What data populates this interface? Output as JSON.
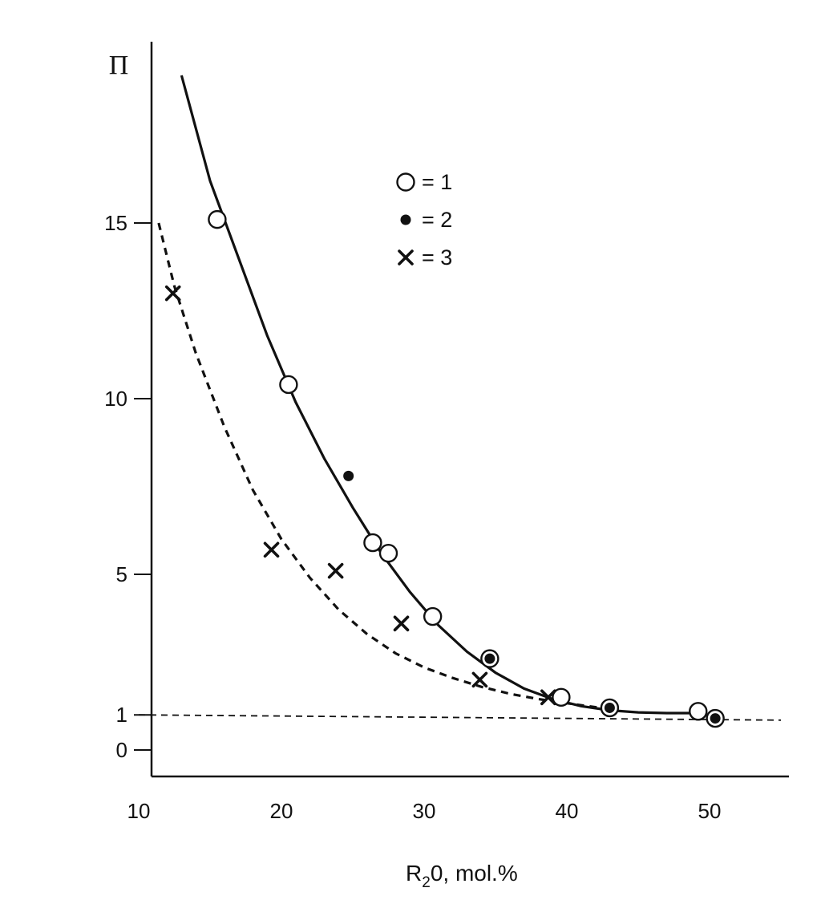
{
  "chart_data": {
    "type": "scatter",
    "title": "",
    "xlabel": {
      "main": "R",
      "sub": "2",
      "rest": "0, mol.%"
    },
    "ylabel": "Π",
    "xlim": [
      10,
      55
    ],
    "ylim": [
      -0.8,
      20
    ],
    "x_ticks": [
      10,
      20,
      30,
      40,
      50
    ],
    "y_ticks": [
      0,
      1,
      5,
      10,
      15
    ],
    "grid": false,
    "legend_position": "top-center",
    "legend": [
      {
        "marker": "open-circle",
        "text": "= 1"
      },
      {
        "marker": "filled-circle",
        "text": "= 2"
      },
      {
        "marker": "cross",
        "text": "= 3"
      }
    ],
    "series": [
      {
        "name": "1",
        "marker": "open-circle",
        "points": [
          [
            15.5,
            15.1
          ],
          [
            20.5,
            10.4
          ],
          [
            26.4,
            5.9
          ],
          [
            27.5,
            5.6
          ],
          [
            30.6,
            3.8
          ],
          [
            34.6,
            2.6
          ],
          [
            39.6,
            1.5
          ],
          [
            43.0,
            1.2
          ],
          [
            49.2,
            1.1
          ],
          [
            50.4,
            0.9
          ]
        ]
      },
      {
        "name": "2",
        "marker": "filled-circle",
        "points": [
          [
            24.7,
            7.8
          ],
          [
            34.6,
            2.6
          ],
          [
            43.0,
            1.2
          ],
          [
            50.4,
            0.9
          ]
        ]
      },
      {
        "name": "3",
        "marker": "cross",
        "points": [
          [
            12.4,
            13.0
          ],
          [
            19.3,
            5.7
          ],
          [
            23.8,
            5.1
          ],
          [
            28.4,
            3.6
          ],
          [
            33.9,
            2.0
          ],
          [
            38.7,
            1.5
          ]
        ]
      }
    ],
    "curves": [
      {
        "style": "solid",
        "points": [
          [
            13.0,
            19.2
          ],
          [
            15,
            16.2
          ],
          [
            17,
            14.0
          ],
          [
            19,
            11.8
          ],
          [
            21,
            9.9
          ],
          [
            23,
            8.3
          ],
          [
            25,
            6.9
          ],
          [
            27,
            5.6
          ],
          [
            29,
            4.5
          ],
          [
            31,
            3.55
          ],
          [
            33,
            2.8
          ],
          [
            35,
            2.2
          ],
          [
            37,
            1.75
          ],
          [
            39,
            1.45
          ],
          [
            41,
            1.25
          ],
          [
            43,
            1.13
          ],
          [
            45,
            1.07
          ],
          [
            47,
            1.05
          ],
          [
            49,
            1.05
          ]
        ]
      },
      {
        "style": "dashed",
        "points": [
          [
            11.4,
            15.0
          ],
          [
            12.5,
            13.2
          ],
          [
            14,
            11.3
          ],
          [
            16,
            9.2
          ],
          [
            18,
            7.4
          ],
          [
            20,
            6.0
          ],
          [
            22,
            4.9
          ],
          [
            24,
            4.0
          ],
          [
            26,
            3.3
          ],
          [
            28,
            2.75
          ],
          [
            30,
            2.35
          ],
          [
            32,
            2.05
          ],
          [
            34,
            1.8
          ],
          [
            36,
            1.6
          ],
          [
            38,
            1.45
          ],
          [
            40,
            1.33
          ],
          [
            42,
            1.22
          ],
          [
            43.3,
            1.15
          ]
        ]
      },
      {
        "style": "dashed-thin",
        "points": [
          [
            10,
            1.0
          ],
          [
            55,
            0.85
          ]
        ]
      }
    ]
  }
}
